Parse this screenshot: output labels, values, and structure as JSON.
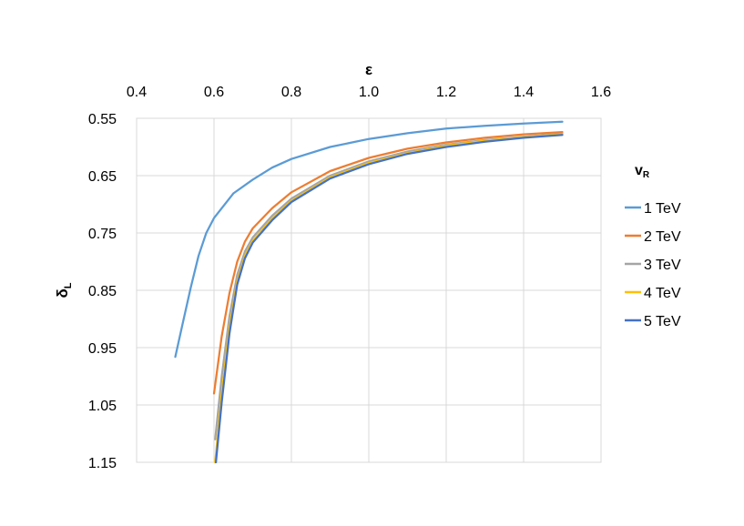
{
  "chart_data": {
    "type": "line",
    "xlabel": "ε",
    "ylabel": "δ",
    "ylabel_sub": "L",
    "xlim": [
      0.4,
      1.6
    ],
    "ylim": [
      0.55,
      1.15
    ],
    "y_reversed": true,
    "x_axis_position": "top",
    "x_ticks": [
      "0.4",
      "0.6",
      "0.8",
      "1.0",
      "1.2",
      "1.4",
      "1.6"
    ],
    "y_ticks": [
      "0.55",
      "0.65",
      "0.75",
      "0.85",
      "0.95",
      "1.05",
      "1.15"
    ],
    "grid": "vertical and horizontal",
    "legend": {
      "title": "v",
      "title_sub": "R",
      "placement": "right"
    },
    "series": [
      {
        "name": "1 TeV",
        "color": "#5B9BD5",
        "points": [
          [
            0.5,
            0.966
          ],
          [
            0.52,
            0.905
          ],
          [
            0.54,
            0.845
          ],
          [
            0.56,
            0.79
          ],
          [
            0.58,
            0.75
          ],
          [
            0.6,
            0.724
          ],
          [
            0.65,
            0.681
          ],
          [
            0.7,
            0.657
          ],
          [
            0.75,
            0.636
          ],
          [
            0.8,
            0.621
          ],
          [
            0.9,
            0.6
          ],
          [
            1.0,
            0.586
          ],
          [
            1.1,
            0.576
          ],
          [
            1.2,
            0.568
          ],
          [
            1.3,
            0.563
          ],
          [
            1.4,
            0.559
          ],
          [
            1.5,
            0.556
          ]
        ]
      },
      {
        "name": "2 TeV",
        "color": "#ED7D31",
        "points": [
          [
            0.6,
            1.03
          ],
          [
            0.62,
            0.93
          ],
          [
            0.64,
            0.855
          ],
          [
            0.66,
            0.8
          ],
          [
            0.68,
            0.765
          ],
          [
            0.7,
            0.742
          ],
          [
            0.75,
            0.707
          ],
          [
            0.8,
            0.679
          ],
          [
            0.9,
            0.642
          ],
          [
            1.0,
            0.619
          ],
          [
            1.1,
            0.603
          ],
          [
            1.2,
            0.592
          ],
          [
            1.3,
            0.584
          ],
          [
            1.4,
            0.578
          ],
          [
            1.5,
            0.574
          ]
        ]
      },
      {
        "name": "3 TeV",
        "color": "#A5A5A5",
        "points": [
          [
            0.603,
            1.11
          ],
          [
            0.62,
            1.0
          ],
          [
            0.64,
            0.895
          ],
          [
            0.66,
            0.823
          ],
          [
            0.68,
            0.782
          ],
          [
            0.7,
            0.758
          ],
          [
            0.75,
            0.72
          ],
          [
            0.8,
            0.69
          ],
          [
            0.9,
            0.65
          ],
          [
            1.0,
            0.625
          ],
          [
            1.1,
            0.608
          ],
          [
            1.2,
            0.596
          ],
          [
            1.3,
            0.588
          ],
          [
            1.4,
            0.582
          ],
          [
            1.5,
            0.577
          ]
        ]
      },
      {
        "name": "4 TeV",
        "color": "#FFC000",
        "points": [
          [
            0.603,
            1.15
          ],
          [
            0.62,
            1.03
          ],
          [
            0.64,
            0.915
          ],
          [
            0.66,
            0.835
          ],
          [
            0.68,
            0.79
          ],
          [
            0.7,
            0.764
          ],
          [
            0.75,
            0.725
          ],
          [
            0.8,
            0.694
          ],
          [
            0.9,
            0.653
          ],
          [
            1.0,
            0.628
          ],
          [
            1.1,
            0.611
          ],
          [
            1.2,
            0.598
          ],
          [
            1.3,
            0.589
          ],
          [
            1.4,
            0.583
          ],
          [
            1.5,
            0.578
          ]
        ]
      },
      {
        "name": "5 TeV",
        "color": "#4472C4",
        "points": [
          [
            0.605,
            1.15
          ],
          [
            0.62,
            1.045
          ],
          [
            0.64,
            0.925
          ],
          [
            0.66,
            0.84
          ],
          [
            0.68,
            0.794
          ],
          [
            0.7,
            0.767
          ],
          [
            0.75,
            0.728
          ],
          [
            0.8,
            0.696
          ],
          [
            0.9,
            0.655
          ],
          [
            1.0,
            0.63
          ],
          [
            1.1,
            0.612
          ],
          [
            1.2,
            0.6
          ],
          [
            1.3,
            0.591
          ],
          [
            1.4,
            0.584
          ],
          [
            1.5,
            0.579
          ]
        ]
      }
    ]
  }
}
